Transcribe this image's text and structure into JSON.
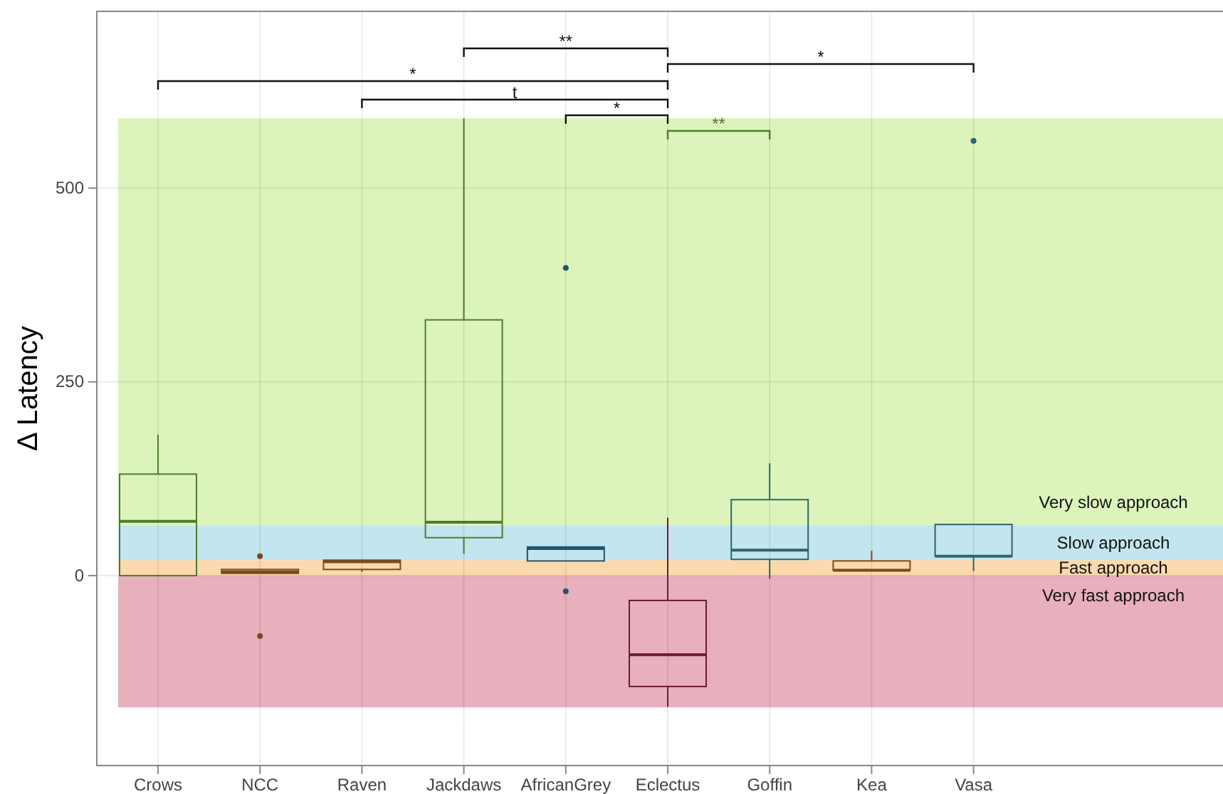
{
  "chart_data": {
    "type": "box",
    "ylabel": "Δ Latency",
    "categories": [
      "Crows",
      "NCC",
      "Raven",
      "Jackdaws",
      "AfricanGrey",
      "Eclectus",
      "Goffin",
      "Kea",
      "Vasa"
    ],
    "boxes": [
      {
        "low": 0,
        "q1": 0,
        "median": 70,
        "q3": 131,
        "high": 182
      },
      {
        "low": 2,
        "q1": 3,
        "median": 5,
        "q3": 8,
        "high": 8,
        "outliers": [
          25,
          -78
        ]
      },
      {
        "low": 5,
        "q1": 8,
        "median": 18,
        "q3": 20,
        "high": 20
      },
      {
        "low": 28,
        "q1": 49,
        "median": 69,
        "q3": 330,
        "high": 590
      },
      {
        "low": 19,
        "q1": 19,
        "median": 35,
        "q3": 37,
        "high": 37,
        "outliers": [
          397,
          -20
        ]
      },
      {
        "low": -169,
        "q1": -143,
        "median": -102,
        "q3": -32,
        "high": 75
      },
      {
        "low": -4,
        "q1": 21,
        "median": 33,
        "q3": 98,
        "high": 145
      },
      {
        "low": 7,
        "q1": 7,
        "median": 7,
        "q3": 19,
        "high": 32
      },
      {
        "low": 6,
        "q1": 25,
        "median": 25,
        "q3": 66,
        "high": 66,
        "outliers": [
          561
        ]
      }
    ],
    "colors": [
      "#4e7d2b",
      "#7a4a1e",
      "#7a4a1e",
      "#4e7d2b",
      "#1d5670",
      "#6b1c30",
      "#2e6470",
      "#7a4a1e",
      "#2e6470"
    ],
    "ylim": [
      -245,
      728
    ],
    "yticks": [
      0,
      250,
      500
    ],
    "grid": true,
    "bands": [
      {
        "axis": "y",
        "from": 65,
        "to": 590,
        "label": "Very slow approach",
        "color": "#dcf4bb"
      },
      {
        "axis": "y",
        "from": 20,
        "to": 65,
        "label": "Slow approach",
        "color": "#c3e5f0"
      },
      {
        "axis": "y",
        "from": 0,
        "to": 20,
        "label": "Fast approach",
        "color": "#fbd9ad"
      },
      {
        "axis": "y",
        "from": -170,
        "to": 0,
        "label": "Very fast approach",
        "color": "#e8afbc"
      }
    ],
    "annotations": [
      "**",
      "*",
      "*",
      "t",
      "*",
      "**"
    ]
  }
}
